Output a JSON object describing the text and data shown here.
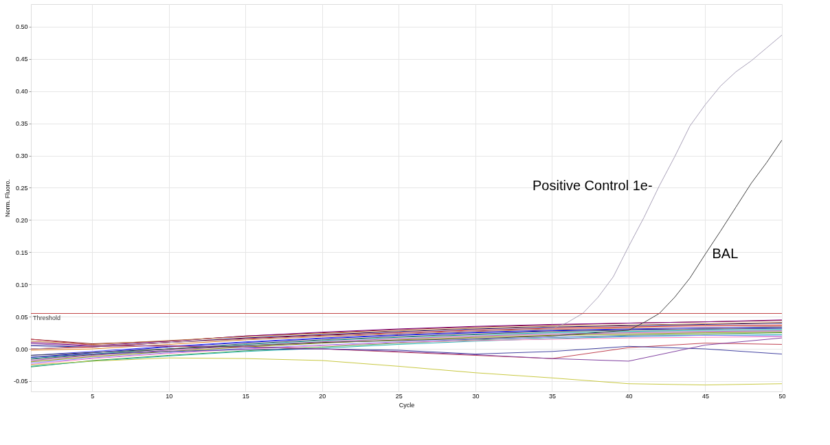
{
  "chart_data": {
    "type": "line",
    "xlabel": "Cycle",
    "ylabel": "Norm. Fluoro.",
    "x": [
      1,
      5,
      10,
      15,
      20,
      25,
      30,
      35,
      40,
      45,
      50
    ],
    "xlim": [
      1,
      50
    ],
    "xticks": [
      5,
      10,
      15,
      20,
      25,
      30,
      35,
      40,
      45,
      50
    ],
    "ylim": [
      -0.066,
      0.535
    ],
    "yticks": [
      {
        "value": -0.05,
        "label": "-0.05"
      },
      {
        "value": 0.0,
        "label": "0.00"
      },
      {
        "value": 0.05,
        "label": "0.05"
      },
      {
        "value": 0.1,
        "label": "0.10"
      },
      {
        "value": 0.15,
        "label": "0.15"
      },
      {
        "value": 0.2,
        "label": "0.20"
      },
      {
        "value": 0.25,
        "label": "0.25"
      },
      {
        "value": 0.3,
        "label": "0.30"
      },
      {
        "value": 0.35,
        "label": "0.35"
      },
      {
        "value": 0.4,
        "label": "0.40"
      },
      {
        "value": 0.45,
        "label": "0.45"
      },
      {
        "value": 0.5,
        "label": "0.50"
      }
    ],
    "grid": true,
    "legend": false,
    "ref_lines": [
      {
        "axis": "y",
        "value": 0.055,
        "label": "Threshold",
        "color": "#c04040"
      }
    ],
    "series": [
      {
        "color": "#8b1a1a",
        "values": [
          0.015,
          0.008,
          0.012,
          0.02,
          0.025,
          0.03,
          0.034,
          0.037,
          0.04,
          0.042,
          0.044
        ]
      },
      {
        "color": "#800080",
        "values": [
          0.01,
          0.005,
          0.012,
          0.02,
          0.026,
          0.031,
          0.035,
          0.038,
          0.04,
          0.042,
          0.045
        ]
      },
      {
        "color": "#000080",
        "values": [
          0.005,
          0.003,
          0.01,
          0.017,
          0.022,
          0.027,
          0.031,
          0.034,
          0.036,
          0.038,
          0.04
        ]
      },
      {
        "color": "#c00000",
        "values": [
          0.0,
          0.003,
          0.01,
          0.016,
          0.021,
          0.025,
          0.029,
          0.032,
          0.034,
          0.036,
          0.037
        ]
      },
      {
        "color": "#e08020",
        "values": [
          -0.002,
          0.0,
          0.007,
          0.014,
          0.019,
          0.023,
          0.027,
          0.03,
          0.032,
          0.033,
          0.035
        ]
      },
      {
        "color": "#0000c0",
        "values": [
          -0.013,
          -0.006,
          0.003,
          0.01,
          0.016,
          0.021,
          0.025,
          0.028,
          0.03,
          0.031,
          0.032
        ]
      },
      {
        "color": "#00a0a0",
        "values": [
          -0.015,
          -0.008,
          0.0,
          0.007,
          0.013,
          0.018,
          0.022,
          0.025,
          0.027,
          0.029,
          0.03
        ]
      },
      {
        "color": "#a040a0",
        "values": [
          -0.018,
          -0.01,
          -0.002,
          0.005,
          0.011,
          0.016,
          0.02,
          0.023,
          0.025,
          0.027,
          0.028
        ]
      },
      {
        "color": "#808000",
        "values": [
          -0.02,
          -0.012,
          -0.004,
          0.003,
          0.009,
          0.014,
          0.018,
          0.021,
          0.023,
          0.025,
          0.026
        ]
      },
      {
        "color": "#40a040",
        "values": [
          -0.028,
          -0.018,
          -0.01,
          -0.003,
          0.003,
          0.009,
          0.014,
          0.018,
          0.021,
          0.023,
          0.025
        ]
      },
      {
        "color": "#20b0b0",
        "values": [
          -0.027,
          -0.019,
          -0.011,
          -0.004,
          0.001,
          0.007,
          0.012,
          0.016,
          0.019,
          0.021,
          0.022
        ]
      },
      {
        "color": "#8080ff",
        "values": [
          -0.022,
          -0.014,
          -0.006,
          0.001,
          0.006,
          0.011,
          0.015,
          0.018,
          0.02,
          0.021,
          0.02
        ]
      },
      {
        "color": "#ff80c0",
        "values": [
          -0.024,
          -0.015,
          -0.007,
          0.0,
          0.005,
          0.01,
          0.013,
          0.015,
          0.017,
          0.018,
          0.019
        ]
      },
      {
        "color": "#c08040",
        "values": [
          0.012,
          0.007,
          0.013,
          0.019,
          0.024,
          0.028,
          0.032,
          0.035,
          0.037,
          0.039,
          0.041
        ]
      },
      {
        "color": "#4040ff",
        "values": [
          -0.01,
          -0.004,
          0.004,
          0.011,
          0.017,
          0.022,
          0.026,
          0.029,
          0.031,
          0.033,
          0.034
        ]
      },
      {
        "color": "#606060",
        "values": [
          -0.016,
          -0.009,
          0.0,
          0.008,
          0.014,
          0.019,
          0.023,
          0.027,
          0.029,
          0.031,
          0.033
        ]
      },
      {
        "color": "#c04050",
        "values": [
          0.015,
          0.006,
          0.004,
          0.003,
          0.0,
          -0.005,
          -0.01,
          -0.015,
          0.002,
          0.009,
          0.007
        ]
      },
      {
        "color": "#4040a0",
        "values": [
          -0.013,
          -0.008,
          -0.004,
          -0.001,
          0.0,
          -0.002,
          -0.008,
          -0.004,
          0.004,
          0.0,
          -0.008
        ]
      },
      {
        "color": "#8040a0",
        "values": [
          0.008,
          0.004,
          0.005,
          0.003,
          0.0,
          -0.004,
          -0.009,
          -0.015,
          -0.019,
          0.006,
          0.017
        ]
      },
      {
        "color": "#c8c840",
        "values": [
          -0.025,
          -0.019,
          -0.014,
          -0.015,
          -0.018,
          -0.027,
          -0.037,
          -0.045,
          -0.054,
          -0.056,
          -0.054
        ]
      },
      {
        "name": "Positive Control 1e-",
        "color": "#a8a0b8",
        "x": [
          1,
          10,
          20,
          30,
          35,
          36,
          37,
          38,
          39,
          40,
          41,
          42,
          43,
          44,
          45,
          46,
          47,
          48,
          49,
          50
        ],
        "values": [
          0.0,
          0.01,
          0.02,
          0.028,
          0.031,
          0.041,
          0.055,
          0.08,
          0.112,
          0.159,
          0.204,
          0.253,
          0.298,
          0.346,
          0.379,
          0.408,
          0.43,
          0.447,
          0.467,
          0.487
        ]
      },
      {
        "name": "BAL",
        "color": "#404040",
        "x": [
          1,
          10,
          20,
          30,
          35,
          40,
          41,
          42,
          43,
          44,
          45,
          46,
          47,
          48,
          49,
          50
        ],
        "values": [
          -0.01,
          0.0,
          0.01,
          0.016,
          0.02,
          0.029,
          0.041,
          0.055,
          0.08,
          0.11,
          0.147,
          0.183,
          0.22,
          0.257,
          0.289,
          0.324
        ]
      }
    ]
  }
}
